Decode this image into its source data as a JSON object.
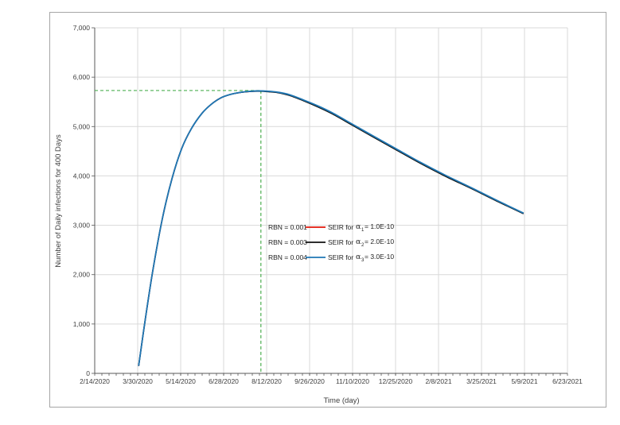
{
  "chart_data": {
    "type": "line",
    "title": "",
    "xlabel": "Time (day)",
    "ylabel": "Number of Daily infections for 400 Days",
    "x_type": "date",
    "xlim": [
      "2020-02-14",
      "2021-06-23"
    ],
    "ylim": [
      0,
      7000
    ],
    "x_ticks": [
      "2020-02-14",
      "2020-03-30",
      "2020-05-14",
      "2020-06-28",
      "2020-08-12",
      "2020-09-26",
      "2020-11-10",
      "2020-12-25",
      "2021-02-08",
      "2021-03-25",
      "2021-05-09",
      "2021-06-23"
    ],
    "x_tick_labels": [
      "2/14/2020",
      "3/30/2020",
      "5/14/2020",
      "6/28/2020",
      "8/12/2020",
      "9/26/2020",
      "11/10/2020",
      "12/25/2020",
      "2/8/2021",
      "3/25/2021",
      "5/9/2021",
      "6/23/2021"
    ],
    "y_ticks": [
      0,
      1000,
      2000,
      3000,
      4000,
      5000,
      6000,
      7000
    ],
    "y_tick_labels": [
      "0",
      "1,000",
      "2,000",
      "3,000",
      "4,000",
      "5,000",
      "6,000",
      "7,000"
    ],
    "grid": true,
    "legend_position": "center-right",
    "peak_marker": {
      "x": "2020-08-06",
      "y": 5730,
      "color": "#4caf50",
      "style": "dashed"
    },
    "series": [
      {
        "rbn_label": "RBN = 0.001",
        "prefix": "SEIR for",
        "alpha_sub": "1",
        "alpha_value": " = 1.0E-10",
        "color": "#e3170a",
        "x": [
          "2020-03-31",
          "2020-04-07",
          "2020-04-15",
          "2020-04-25",
          "2020-05-05",
          "2020-05-15",
          "2020-05-25",
          "2020-06-05",
          "2020-06-15",
          "2020-06-25",
          "2020-07-05",
          "2020-07-15",
          "2020-07-25",
          "2020-08-04",
          "2020-08-14",
          "2020-08-24",
          "2020-09-05",
          "2020-09-20",
          "2020-10-05",
          "2020-10-20",
          "2020-11-10",
          "2020-12-01",
          "2020-12-25",
          "2021-01-20",
          "2021-02-15",
          "2021-03-15",
          "2021-04-10",
          "2021-05-08"
        ],
        "y": [
          150,
          1100,
          2100,
          3150,
          3950,
          4550,
          4950,
          5260,
          5450,
          5580,
          5650,
          5690,
          5710,
          5720,
          5710,
          5690,
          5640,
          5530,
          5410,
          5270,
          5040,
          4810,
          4550,
          4270,
          4010,
          3750,
          3500,
          3240
        ]
      },
      {
        "rbn_label": "RBN = 0.003",
        "prefix": "SEIR for",
        "alpha_sub": "2",
        "alpha_value": " = 2.0E-10",
        "color": "#111111",
        "x": [
          "2020-03-31",
          "2020-04-07",
          "2020-04-15",
          "2020-04-25",
          "2020-05-05",
          "2020-05-15",
          "2020-05-25",
          "2020-06-05",
          "2020-06-15",
          "2020-06-25",
          "2020-07-05",
          "2020-07-15",
          "2020-07-25",
          "2020-08-04",
          "2020-08-14",
          "2020-08-24",
          "2020-09-05",
          "2020-09-20",
          "2020-10-05",
          "2020-10-20",
          "2020-11-10",
          "2020-12-01",
          "2020-12-25",
          "2021-01-20",
          "2021-02-15",
          "2021-03-15",
          "2021-04-10",
          "2021-05-08"
        ],
        "y": [
          150,
          1100,
          2100,
          3150,
          3950,
          4550,
          4950,
          5260,
          5450,
          5580,
          5650,
          5690,
          5710,
          5715,
          5705,
          5685,
          5630,
          5520,
          5395,
          5255,
          5025,
          4795,
          4535,
          4255,
          3995,
          3738,
          3490,
          3235
        ]
      },
      {
        "rbn_label": "RBN = 0.004",
        "prefix": "SEIR for",
        "alpha_sub": "3",
        "alpha_value": " = 3.0E-10",
        "color": "#1f77b4",
        "x": [
          "2020-03-31",
          "2020-04-07",
          "2020-04-15",
          "2020-04-25",
          "2020-05-05",
          "2020-05-15",
          "2020-05-25",
          "2020-06-05",
          "2020-06-15",
          "2020-06-25",
          "2020-07-05",
          "2020-07-15",
          "2020-07-25",
          "2020-08-04",
          "2020-08-14",
          "2020-08-24",
          "2020-09-05",
          "2020-09-20",
          "2020-10-05",
          "2020-10-20",
          "2020-11-10",
          "2020-12-01",
          "2020-12-25",
          "2021-01-20",
          "2021-02-15",
          "2021-03-15",
          "2021-04-10",
          "2021-05-08"
        ],
        "y": [
          150,
          1100,
          2100,
          3150,
          3950,
          4550,
          4950,
          5260,
          5450,
          5580,
          5650,
          5690,
          5712,
          5722,
          5715,
          5695,
          5645,
          5535,
          5415,
          5275,
          5045,
          4815,
          4555,
          4275,
          4015,
          3755,
          3505,
          3245
        ]
      }
    ]
  }
}
